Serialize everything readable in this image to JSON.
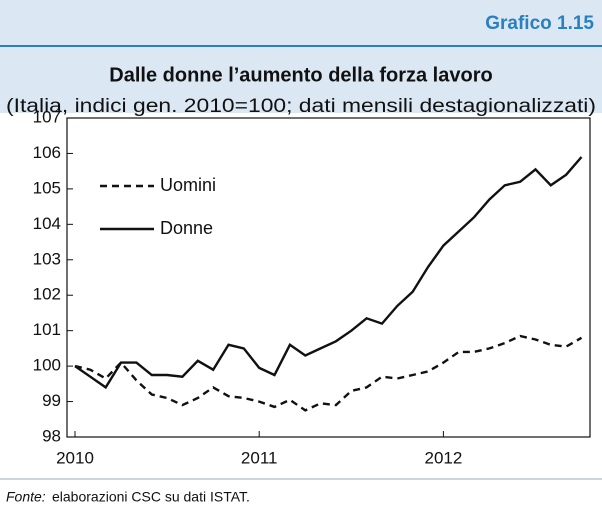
{
  "chart_data": {
    "type": "line",
    "label": "Grafico 1.15",
    "title": "Dalle donne l’aumento della forza lavoro",
    "subtitle": "(Italia, indici gen. 2010=100; dati mensili destagionalizzati)",
    "source_label": "Fonte:",
    "source": "elaborazioni CSC su dati ISTAT.",
    "categories": [
      "2010",
      null,
      null,
      null,
      null,
      null,
      null,
      null,
      null,
      null,
      null,
      null,
      "2011",
      null,
      null,
      null,
      null,
      null,
      null,
      null,
      null,
      null,
      null,
      null,
      "2012",
      null,
      null,
      null,
      null,
      null,
      null,
      null,
      null,
      null
    ],
    "series": [
      {
        "name": "Uomini",
        "color": "#111111",
        "line_style": "dashed",
        "values": [
          100.0,
          99.9,
          99.65,
          100.1,
          99.6,
          99.2,
          99.1,
          98.9,
          99.1,
          99.4,
          99.15,
          99.1,
          99.0,
          98.85,
          99.05,
          98.75,
          98.95,
          98.9,
          99.3,
          99.4,
          99.7,
          99.65,
          99.75,
          99.85,
          100.1,
          100.4,
          100.4,
          100.5,
          100.65,
          100.85,
          100.75,
          100.6,
          100.55,
          100.8
        ]
      },
      {
        "name": "Donne",
        "color": "#111111",
        "line_style": "solid",
        "values": [
          100.0,
          99.7,
          99.4,
          100.1,
          100.1,
          99.75,
          99.75,
          99.7,
          100.15,
          99.9,
          100.6,
          100.5,
          99.95,
          99.75,
          100.6,
          100.3,
          100.5,
          100.7,
          101.0,
          101.35,
          101.2,
          101.7,
          102.1,
          102.8,
          103.4,
          103.8,
          104.2,
          104.7,
          105.1,
          105.2,
          105.55,
          105.1,
          105.4,
          105.9
        ]
      }
    ],
    "ylim": [
      98,
      107
    ],
    "yticks": [
      98,
      99,
      100,
      101,
      102,
      103,
      104,
      105,
      106,
      107
    ],
    "legend": "upper left",
    "grid": false
  }
}
